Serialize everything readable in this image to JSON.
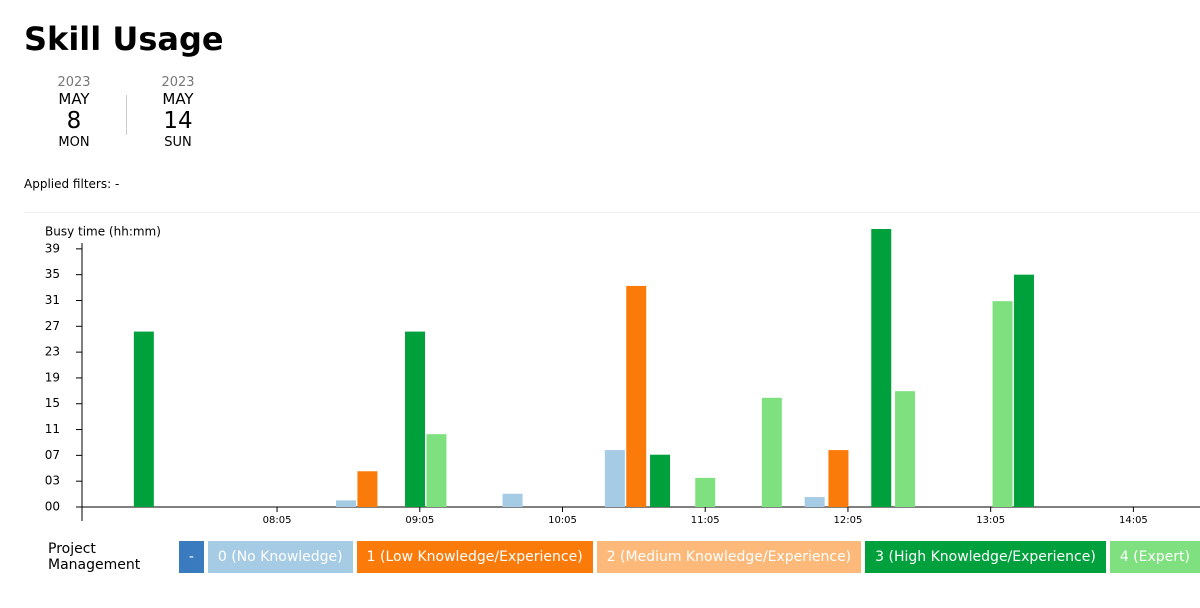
{
  "header": {
    "title": "Skill Usage",
    "date_range": [
      {
        "year": "2023",
        "month": "MAY",
        "day": "8",
        "weekday": "MON"
      },
      {
        "year": "2023",
        "month": "MAY",
        "day": "14",
        "weekday": "SUN"
      }
    ],
    "filters": "Applied filters: -"
  },
  "chart_data": {
    "type": "bar",
    "y_label": "Busy time (hh:mm)",
    "legend_title": "Project Management",
    "xlim": [
      403,
      873
    ],
    "xticks": [
      {
        "value": 485,
        "label": "08:05"
      },
      {
        "value": 545,
        "label": "09:05"
      },
      {
        "value": 605,
        "label": "10:05"
      },
      {
        "value": 665,
        "label": "11:05"
      },
      {
        "value": 725,
        "label": "12:05"
      },
      {
        "value": 785,
        "label": "13:05"
      },
      {
        "value": 845,
        "label": "14:05"
      }
    ],
    "ylim": [
      0,
      42
    ],
    "yticks": [
      {
        "value": 0,
        "label": "00"
      },
      {
        "value": 3.9,
        "label": "03"
      },
      {
        "value": 7.8,
        "label": "07"
      },
      {
        "value": 11.7,
        "label": "11"
      },
      {
        "value": 15.6,
        "label": "15"
      },
      {
        "value": 19.5,
        "label": "19"
      },
      {
        "value": 23.4,
        "label": "23"
      },
      {
        "value": 27.3,
        "label": "27"
      },
      {
        "value": 31.2,
        "label": "31"
      },
      {
        "value": 35.1,
        "label": "35"
      },
      {
        "value": 39,
        "label": "39"
      }
    ],
    "series": [
      {
        "name": "-",
        "color": "#3a7bbf",
        "x": [],
        "values": []
      },
      {
        "name": "0 (No Knowledge)",
        "color": "#a6cbe5",
        "x": [
          514,
          584,
          627,
          711
        ],
        "values": [
          1,
          2,
          8.6,
          1.5
        ]
      },
      {
        "name": "1 (Low Knowledge/Experience)",
        "color": "#fb7b0a",
        "x": [
          523,
          636,
          721
        ],
        "values": [
          5.4,
          33.4,
          8.6
        ]
      },
      {
        "name": "2 (Medium Knowledge/Experience)",
        "color": "#fdb97a",
        "x": [],
        "values": []
      },
      {
        "name": "3 (High Knowledge/Experience)",
        "color": "#00a03c",
        "x": [
          429,
          543,
          646,
          739,
          799
        ],
        "values": [
          26.5,
          26.5,
          7.9,
          42,
          35.1
        ]
      },
      {
        "name": "4 (Expert)",
        "color": "#7fe07f",
        "x": [
          552,
          665,
          693,
          749,
          790
        ],
        "values": [
          11,
          4.4,
          16.5,
          17.5,
          31.1
        ]
      }
    ]
  }
}
